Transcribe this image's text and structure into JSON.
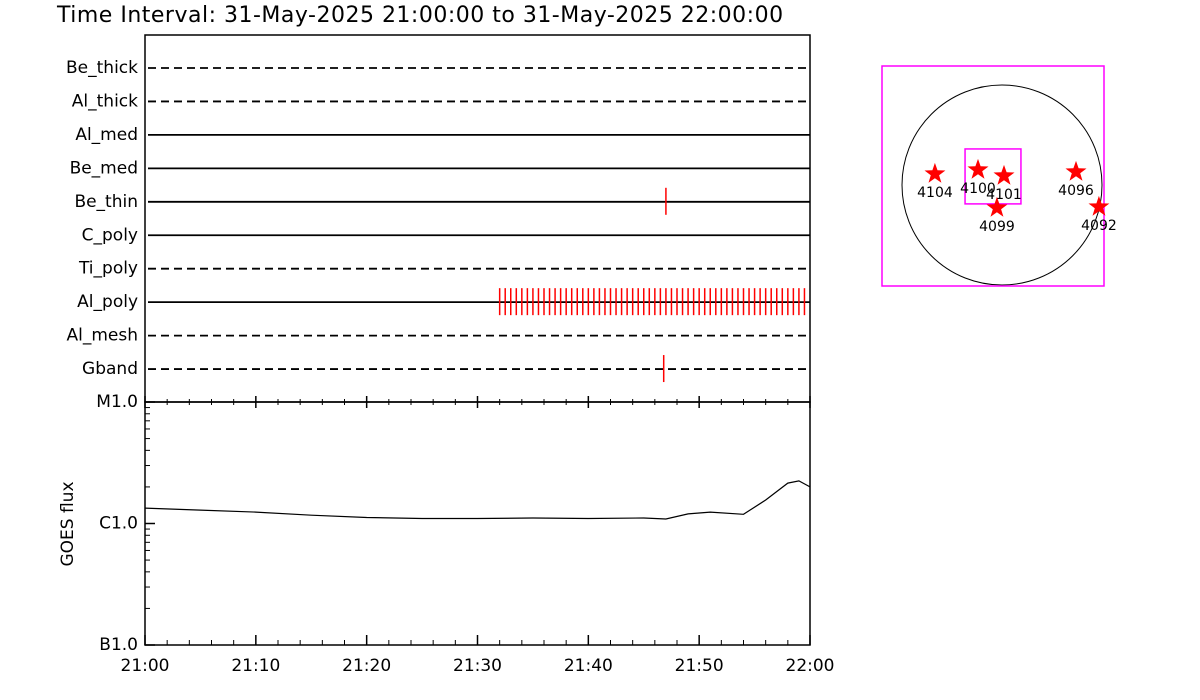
{
  "chart_data": [
    {
      "type": "timeline",
      "title": "Time Interval: 31-May-2025 21:00:00 to 31-May-2025 22:00:00",
      "xlim": [
        0,
        60
      ],
      "series": [
        {
          "name": "Be_thick",
          "style": "dashed",
          "color": "#ff0000",
          "values": []
        },
        {
          "name": "Al_thick",
          "style": "dashed",
          "color": "#ff0000",
          "values": []
        },
        {
          "name": "Al_med",
          "style": "solid",
          "color": "#ff0000",
          "values": []
        },
        {
          "name": "Be_med",
          "style": "solid",
          "color": "#ff0000",
          "values": []
        },
        {
          "name": "Be_thin",
          "style": "solid",
          "color": "#ff0000",
          "values": [
            47
          ]
        },
        {
          "name": "C_poly",
          "style": "solid",
          "color": "#ff0000",
          "values": []
        },
        {
          "name": "Ti_poly",
          "style": "dashed",
          "color": "#ff0000",
          "values": []
        },
        {
          "name": "Al_poly",
          "style": "solid",
          "color": "#ff0000",
          "values": [
            32,
            32.5,
            33,
            33.5,
            34,
            34.5,
            35,
            35.5,
            36,
            36.5,
            37,
            37.5,
            38,
            38.5,
            39,
            39.5,
            40,
            40.5,
            41,
            41.5,
            42,
            42.5,
            43,
            43.5,
            44,
            44.5,
            45,
            45.5,
            46,
            46.5,
            47,
            47.5,
            48,
            48.5,
            49,
            49.5,
            50,
            50.5,
            51,
            51.5,
            52,
            52.5,
            53,
            53.5,
            54,
            54.5,
            55,
            55.5,
            56,
            56.5,
            57,
            57.5,
            58,
            58.5,
            59,
            59.5
          ]
        },
        {
          "name": "Al_mesh",
          "style": "dashed",
          "color": "#ff0000",
          "values": []
        },
        {
          "name": "Gband",
          "style": "dashed",
          "color": "#ff0000",
          "values": [
            46.8
          ]
        }
      ]
    },
    {
      "type": "line",
      "ylabel": "GOES flux",
      "log": true,
      "color": "#000000",
      "x": [
        0,
        5,
        10,
        15,
        20,
        25,
        30,
        35,
        40,
        45,
        47,
        49,
        51,
        54,
        56,
        58,
        59,
        60
      ],
      "values": [
        1.34e-06,
        1.29e-06,
        1.24e-06,
        1.17e-06,
        1.12e-06,
        1.1e-06,
        1.1e-06,
        1.11e-06,
        1.1e-06,
        1.11e-06,
        1.09e-06,
        1.2e-06,
        1.24e-06,
        1.19e-06,
        1.56e-06,
        2.15e-06,
        2.24e-06,
        2e-06
      ],
      "xlim": [
        0,
        60
      ],
      "xticks": [
        {
          "value": 0,
          "label": "21:00"
        },
        {
          "value": 10,
          "label": "21:10"
        },
        {
          "value": 20,
          "label": "21:20"
        },
        {
          "value": 30,
          "label": "21:30"
        },
        {
          "value": 40,
          "label": "21:40"
        },
        {
          "value": 50,
          "label": "21:50"
        },
        {
          "value": 60,
          "label": "22:00"
        }
      ],
      "ylim": [
        1e-07,
        1e-05
      ],
      "yticks": [
        {
          "value": 1e-07,
          "label": "B1.0"
        },
        {
          "value": 1e-06,
          "label": "C1.0"
        },
        {
          "value": 1e-05,
          "label": "M1.0"
        }
      ]
    },
    {
      "type": "scatter",
      "color": "#ff0000",
      "box_color": "#ff00ff",
      "xlim": [
        -1140,
        969
      ],
      "ylim": [
        -960,
        1130
      ],
      "fov": {
        "x": [
          -351,
          180
        ],
        "y": [
          -180,
          342
        ]
      },
      "labels": [
        "4104",
        "4100",
        "4101",
        "4099",
        "4096",
        "4092"
      ],
      "x": [
        -637,
        -228,
        19,
        -48,
        703,
        921
      ],
      "values": [
        105,
        143,
        86,
        -218,
        124,
        -209
      ]
    }
  ]
}
